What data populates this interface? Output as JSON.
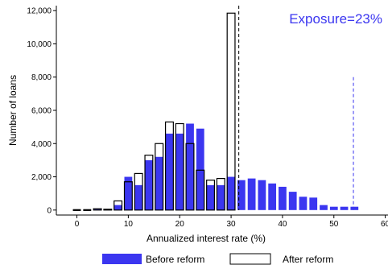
{
  "colors": {
    "before": "#3b36f0",
    "after_fill": "#ffffff",
    "after_stroke": "#000000",
    "annotation": "#3b36f0",
    "after_cutoff_line": "#000000",
    "before_cutoff_line": "#3b36f0"
  },
  "chart_data": {
    "type": "bar",
    "xlabel": "Annualized interest rate (%)",
    "ylabel": "Number of loans",
    "annotation": "Exposure=23%",
    "xlim": [
      -4,
      61
    ],
    "ylim": [
      -300,
      12300
    ],
    "x_ticks": [
      0,
      10,
      20,
      30,
      40,
      50,
      60
    ],
    "y_ticks": [
      0,
      2000,
      4000,
      6000,
      8000,
      10000,
      12000
    ],
    "y_tick_labels": [
      "0",
      "2,000",
      "4,000",
      "6,000",
      "8,000",
      "10,000",
      "12,000"
    ],
    "bin_width": 2,
    "legend": [
      {
        "key": "before",
        "label": "Before reform"
      },
      {
        "key": "after",
        "label": "After reform"
      }
    ],
    "series": [
      {
        "name": "Before reform",
        "x": [
          0,
          2,
          4,
          6,
          8,
          10,
          12,
          14,
          16,
          18,
          20,
          22,
          24,
          26,
          28,
          30,
          32,
          34,
          36,
          38,
          40,
          42,
          44,
          46,
          48,
          50,
          52,
          54
        ],
        "values": [
          0,
          0,
          50,
          50,
          300,
          2000,
          1500,
          3000,
          3200,
          4600,
          4600,
          5200,
          4900,
          1500,
          1500,
          2000,
          1800,
          1900,
          1800,
          1600,
          1400,
          1100,
          800,
          750,
          300,
          200,
          200,
          200
        ]
      },
      {
        "name": "After reform",
        "x": [
          0,
          2,
          4,
          6,
          8,
          10,
          12,
          14,
          16,
          18,
          20,
          22,
          24,
          26,
          28,
          30
        ],
        "values": [
          0,
          0,
          80,
          50,
          550,
          1700,
          2200,
          3300,
          4000,
          5300,
          5200,
          4000,
          2400,
          1800,
          1900,
          11850
        ]
      }
    ],
    "cutoff_lines": [
      {
        "name": "after",
        "x": 31.5,
        "y_top": 12300
      },
      {
        "name": "before",
        "x": 53.8,
        "y_top": 8000
      }
    ]
  }
}
